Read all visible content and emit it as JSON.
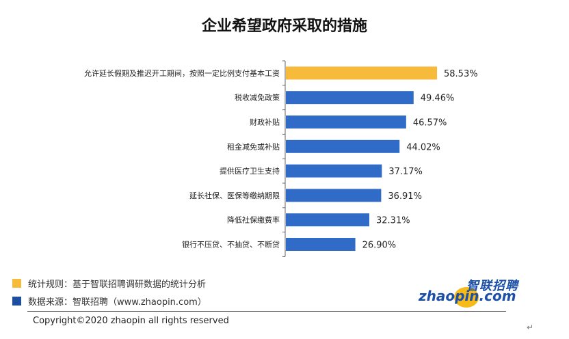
{
  "chart_data": {
    "type": "bar",
    "orientation": "horizontal",
    "title": "企业希望政府采取的措施",
    "categories": [
      "允许延长假期及推迟开工期间，按照一定比例支付基本工资",
      "税收减免政策",
      "财政补贴",
      "租金减免或补贴",
      "提供医疗卫生支持",
      "延长社保、医保等缴纳期限",
      "降低社保缴费率",
      "银行不压贷、不抽贷、不断贷"
    ],
    "values": [
      58.53,
      49.46,
      46.57,
      44.02,
      37.17,
      36.91,
      32.31,
      26.9
    ],
    "value_labels": [
      "58.53%",
      "49.46%",
      "46.57%",
      "44.02%",
      "37.17%",
      "36.91%",
      "32.31%",
      "26.90%"
    ],
    "highlight_index": 0,
    "colors": {
      "highlight": "#f7bb3c",
      "default": "#2f6bc7"
    },
    "xlim": [
      0,
      100
    ],
    "xlabel": "",
    "ylabel": ""
  },
  "footer": {
    "rule_label": "统计规则：基于智联招聘调研数据的统计分析",
    "source_label": "数据来源：智联招聘（www.zhaopin.com）",
    "rule_color": "#f7bb3c",
    "source_color": "#1c4fa0",
    "copyright": "Copyright©2020 zhaopin all rights reserved"
  },
  "logo": {
    "brand_cn": "智联招聘",
    "brand_en": "zhaopin.com"
  },
  "corner_mark": "↵"
}
